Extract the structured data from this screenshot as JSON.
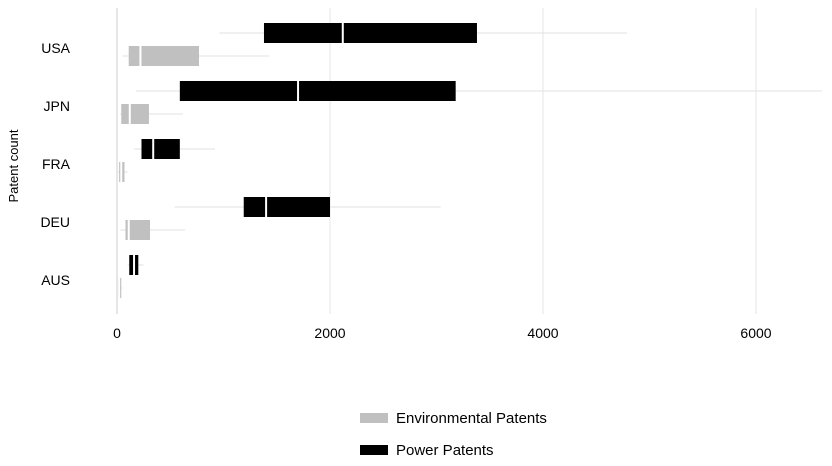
{
  "chart_data": {
    "type": "boxplot",
    "orientation": "horizontal",
    "title": "",
    "xlabel": "",
    "ylabel": "Patent count",
    "xlim": [
      0,
      6600
    ],
    "xticks": [
      0,
      2000,
      4000,
      6000
    ],
    "grid": true,
    "legend_position": "bottom-center",
    "categories": [
      "USA",
      "JPN",
      "FRA",
      "DEU",
      "AUS"
    ],
    "series": [
      {
        "name": "Power Patents",
        "color": "#000000",
        "boxes": [
          {
            "category": "USA",
            "whisker_low": 960,
            "q1": 1380,
            "median": 2120,
            "q3": 3380,
            "whisker_high": 4790
          },
          {
            "category": "JPN",
            "whisker_low": 180,
            "q1": 590,
            "median": 1700,
            "q3": 3180,
            "whisker_high": 6620
          },
          {
            "category": "FRA",
            "whisker_low": 160,
            "q1": 230,
            "median": 340,
            "q3": 590,
            "whisker_high": 920
          },
          {
            "category": "DEU",
            "whisker_low": 540,
            "q1": 1190,
            "median": 1400,
            "q3": 2000,
            "whisker_high": 3040
          },
          {
            "category": "AUS",
            "whisker_low": 100,
            "q1": 115,
            "median": 160,
            "q3": 200,
            "whisker_high": 250
          }
        ]
      },
      {
        "name": "Environmental Patents",
        "color": "#c0c0c0",
        "boxes": [
          {
            "category": "USA",
            "whisker_low": 50,
            "q1": 110,
            "median": 220,
            "q3": 770,
            "whisker_high": 1430
          },
          {
            "category": "JPN",
            "whisker_low": 30,
            "q1": 40,
            "median": 120,
            "q3": 300,
            "whisker_high": 620
          },
          {
            "category": "FRA",
            "whisker_low": 10,
            "q1": 20,
            "median": 40,
            "q3": 70,
            "whisker_high": 100
          },
          {
            "category": "DEU",
            "whisker_low": 30,
            "q1": 80,
            "median": 110,
            "q3": 310,
            "whisker_high": 640
          },
          {
            "category": "AUS",
            "whisker_low": 5,
            "q1": 10,
            "median": 20,
            "q3": 40,
            "whisker_high": 50
          }
        ]
      }
    ]
  },
  "legend": {
    "items": [
      {
        "label": "Environmental Patents",
        "color": "#c0c0c0"
      },
      {
        "label": "Power Patents",
        "color": "#000000"
      }
    ]
  }
}
